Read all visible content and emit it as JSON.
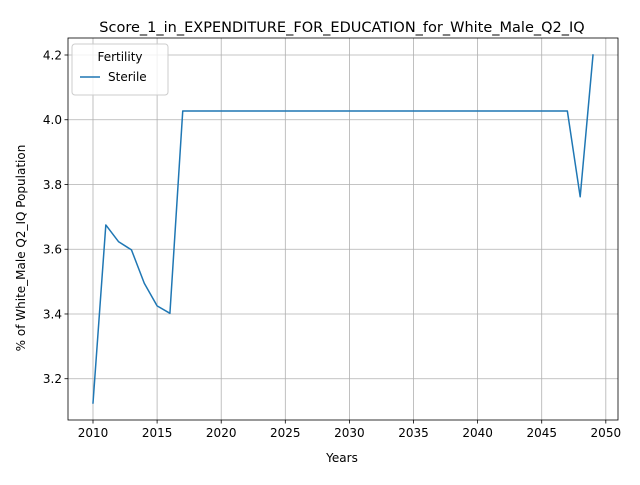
{
  "chart_data": {
    "type": "line",
    "title": "Score_1_in_EXPENDITURE_FOR_EDUCATION_for_White_Male_Q2_IQ",
    "xlabel": "Years",
    "ylabel": "% of White_Male Q2_IQ Population",
    "xlim": [
      2008.05,
      2050.95
    ],
    "ylim": [
      3.0725,
      4.2525
    ],
    "x_ticks": [
      2010,
      2015,
      2020,
      2025,
      2030,
      2035,
      2040,
      2045,
      2050
    ],
    "y_ticks": [
      3.2,
      3.4,
      3.6,
      3.8,
      4.0,
      4.2
    ],
    "grid": true,
    "legend": {
      "title": "Fertility",
      "placement": "top-left"
    },
    "series": [
      {
        "name": "Sterile",
        "color": "#1f77b4",
        "x": [
          2010,
          2011,
          2012,
          2013,
          2014,
          2015,
          2016,
          2017,
          2018,
          2019,
          2020,
          2021,
          2022,
          2023,
          2024,
          2025,
          2026,
          2027,
          2028,
          2029,
          2030,
          2031,
          2032,
          2033,
          2034,
          2035,
          2036,
          2037,
          2038,
          2039,
          2040,
          2041,
          2042,
          2043,
          2044,
          2045,
          2046,
          2047,
          2048,
          2049
        ],
        "y": [
          3.125,
          3.675,
          3.623,
          3.598,
          3.495,
          3.425,
          3.402,
          4.027,
          4.027,
          4.027,
          4.027,
          4.027,
          4.027,
          4.027,
          4.027,
          4.027,
          4.027,
          4.027,
          4.027,
          4.027,
          4.027,
          4.027,
          4.027,
          4.027,
          4.027,
          4.027,
          4.027,
          4.027,
          4.027,
          4.027,
          4.027,
          4.027,
          4.027,
          4.027,
          4.027,
          4.027,
          4.027,
          4.027,
          3.762,
          4.2
        ]
      }
    ]
  }
}
